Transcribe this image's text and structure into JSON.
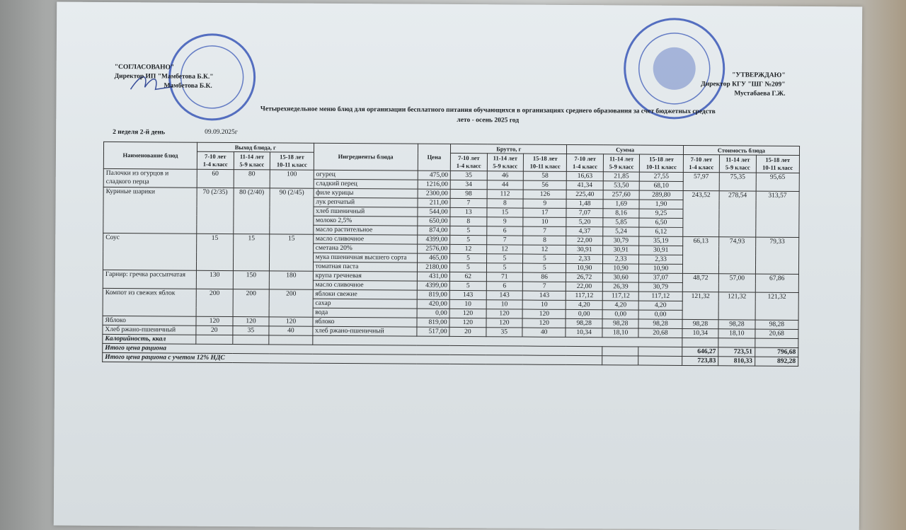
{
  "approval_left": {
    "label": "\"СОГЛАСОВАНО\"",
    "position": "Директор ИП \"Мамбетова Б.К.\"",
    "name": "Мамбетова Б.К."
  },
  "approval_right": {
    "label": "\"УТВЕРЖДАЮ\"",
    "position": "Директор КГУ \"ШГ №209\"",
    "name": "Мустабаева Г.Ж."
  },
  "title_line1": "Четырехнедельное меню блюд для организации бесплатного питания обучающихся в организациях среднего образования за счет бюджетных средств",
  "title_line2": "лето - осень 2025 год",
  "day_label": "2 неделя 2-й день",
  "date": "09.09.2025г",
  "stamp_colors": {
    "ink": "#2f4fb4"
  },
  "table": {
    "headers": {
      "dish": "Наименование блюд",
      "yield": "Выход блюда, г",
      "ingredients": "Ингредиенты блюда",
      "price": "Цена",
      "brutto": "Брутто, г",
      "sum": "Сумма",
      "cost": "Стоимость блюда",
      "age_groups": [
        [
          "7-10 лет",
          "1-4 класс"
        ],
        [
          "11-14 лет",
          "5-9 класс"
        ],
        [
          "15-18 лет",
          "10-11 класс"
        ]
      ]
    },
    "dishes": [
      {
        "name": "Палочки из огурцов и сладкого перца",
        "yield": [
          "60",
          "80",
          "100"
        ],
        "cost": [
          "57,97",
          "75,35",
          "95,65"
        ],
        "ingredients": [
          {
            "name": "огурец",
            "price": "475,00",
            "brutto": [
              "35",
              "46",
              "58"
            ],
            "sum": [
              "16,63",
              "21,85",
              "27,55"
            ]
          },
          {
            "name": "сладкий перец",
            "price": "1216,00",
            "brutto": [
              "34",
              "44",
              "56"
            ],
            "sum": [
              "41,34",
              "53,50",
              "68,10"
            ]
          }
        ]
      },
      {
        "name": "Куриные шарики",
        "yield": [
          "70 (2/35)",
          "80 (2/40)",
          "90 (2/45)"
        ],
        "cost": [
          "243,52",
          "278,54",
          "313,57"
        ],
        "ingredients": [
          {
            "name": "филе курицы",
            "price": "2300,00",
            "brutto": [
              "98",
              "112",
              "126"
            ],
            "sum": [
              "225,40",
              "257,60",
              "289,80"
            ]
          },
          {
            "name": "лук репчатый",
            "price": "211,00",
            "brutto": [
              "7",
              "8",
              "9"
            ],
            "sum": [
              "1,48",
              "1,69",
              "1,90"
            ]
          },
          {
            "name": "хлеб пшеничный",
            "price": "544,00",
            "brutto": [
              "13",
              "15",
              "17"
            ],
            "sum": [
              "7,07",
              "8,16",
              "9,25"
            ]
          },
          {
            "name": "молоко 2,5%",
            "price": "650,00",
            "brutto": [
              "8",
              "9",
              "10"
            ],
            "sum": [
              "5,20",
              "5,85",
              "6,50"
            ]
          },
          {
            "name": "масло растительное",
            "price": "874,00",
            "brutto": [
              "5",
              "6",
              "7"
            ],
            "sum": [
              "4,37",
              "5,24",
              "6,12"
            ]
          }
        ]
      },
      {
        "name": "Соус",
        "yield": [
          "15",
          "15",
          "15"
        ],
        "cost": [
          "66,13",
          "74,93",
          "79,33"
        ],
        "ingredients": [
          {
            "name": "масло сливочное",
            "price": "4399,00",
            "brutto": [
              "5",
              "7",
              "8"
            ],
            "sum": [
              "22,00",
              "30,79",
              "35,19"
            ]
          },
          {
            "name": "сметана 20%",
            "price": "2576,00",
            "brutto": [
              "12",
              "12",
              "12"
            ],
            "sum": [
              "30,91",
              "30,91",
              "30,91"
            ]
          },
          {
            "name": "мука пшеничная высшего сорта",
            "price": "465,00",
            "brutto": [
              "5",
              "5",
              "5"
            ],
            "sum": [
              "2,33",
              "2,33",
              "2,33"
            ]
          },
          {
            "name": "томатная паста",
            "price": "2180,00",
            "brutto": [
              "5",
              "5",
              "5"
            ],
            "sum": [
              "10,90",
              "10,90",
              "10,90"
            ]
          }
        ]
      },
      {
        "name": "Гарнир: гречка рассыпчатая",
        "yield": [
          "130",
          "150",
          "180"
        ],
        "cost": [
          "48,72",
          "57,00",
          "67,86"
        ],
        "ingredients": [
          {
            "name": "крупа гречневая",
            "price": "431,00",
            "brutto": [
              "62",
              "71",
              "86"
            ],
            "sum": [
              "26,72",
              "30,60",
              "37,07"
            ]
          },
          {
            "name": "масло сливочное",
            "price": "4399,00",
            "brutto": [
              "5",
              "6",
              "7"
            ],
            "sum": [
              "22,00",
              "26,39",
              "30,79"
            ]
          }
        ]
      },
      {
        "name": "Компот из свежих яблок",
        "yield": [
          "200",
          "200",
          "200"
        ],
        "cost": [
          "121,32",
          "121,32",
          "121,32"
        ],
        "ingredients": [
          {
            "name": "яблоки свежие",
            "price": "819,00",
            "brutto": [
              "143",
              "143",
              "143"
            ],
            "sum": [
              "117,12",
              "117,12",
              "117,12"
            ]
          },
          {
            "name": "сахар",
            "price": "420,00",
            "brutto": [
              "10",
              "10",
              "10"
            ],
            "sum": [
              "4,20",
              "4,20",
              "4,20"
            ]
          },
          {
            "name": "вода",
            "price": "0,00",
            "brutto": [
              "120",
              "120",
              "120"
            ],
            "sum": [
              "0,00",
              "0,00",
              "0,00"
            ]
          }
        ]
      },
      {
        "name": "Яблоко",
        "yield": [
          "120",
          "120",
          "120"
        ],
        "cost": [
          "98,28",
          "98,28",
          "98,28"
        ],
        "ingredients": [
          {
            "name": "яблоко",
            "price": "819,00",
            "brutto": [
              "120",
              "120",
              "120"
            ],
            "sum": [
              "98,28",
              "98,28",
              "98,28"
            ]
          }
        ]
      },
      {
        "name": "Хлеб ржано-пшеничный",
        "yield": [
          "20",
          "35",
          "40"
        ],
        "cost": [
          "10,34",
          "18,10",
          "20,68"
        ],
        "ingredients": [
          {
            "name": "хлеб ржано-пшеничный",
            "price": "517,00",
            "brutto": [
              "20",
              "35",
              "40"
            ],
            "sum": [
              "10,34",
              "18,10",
              "20,68"
            ]
          }
        ]
      }
    ],
    "calories_label": "Калорийность, ккал",
    "total_label": "Итого цена рациона",
    "total": [
      "646,27",
      "723,51",
      "796,68"
    ],
    "total_vat_label": "Итого цена рациона с учетом 12% НДС",
    "total_vat": [
      "723,83",
      "810,33",
      "892,28"
    ]
  }
}
